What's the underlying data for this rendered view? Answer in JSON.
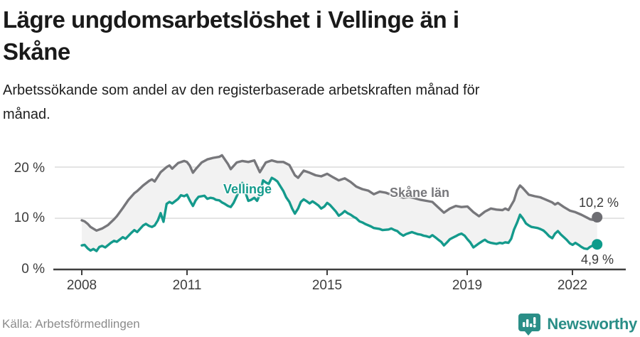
{
  "header": {
    "title_line1": "Lägre ungdomsarbetslöshet i Vellinge än i",
    "title_line2": "Skåne",
    "subtitle_line1": "Arbetssökande som andel av den registerbaserade arbetskraften månad för",
    "subtitle_line2": "månad."
  },
  "chart_data": {
    "type": "line",
    "unit": "%",
    "grid": "horizontal gridlines at 10 and 20, dark baseline at 0",
    "legend_position": "inline labels on lines",
    "band_fill_between_series": true,
    "band_color": "#f2f2f2",
    "grid_color": "#dcdcdc",
    "axis_color": "#3f3f3f",
    "x_axis": {
      "range_years": [
        2008,
        2022.7
      ],
      "ticks": [
        2008,
        2011,
        2015,
        2019,
        2022
      ],
      "tick_labels": [
        "2008",
        "2011",
        "2015",
        "2019",
        "2022"
      ]
    },
    "y_axis": {
      "ticks": [
        0,
        10,
        20
      ],
      "tick_labels": [
        "0 %",
        "10 %",
        "20 %"
      ],
      "ylim": [
        0,
        23
      ]
    },
    "series": [
      {
        "name": "Skåne län",
        "color": "#77777b",
        "dot_color": "#6d6d72",
        "end_value": 10.2,
        "end_value_label": "10,2 %",
        "points": [
          [
            2008.0,
            9.6
          ],
          [
            2008.08,
            9.4
          ],
          [
            2008.17,
            8.9
          ],
          [
            2008.25,
            8.3
          ],
          [
            2008.42,
            7.6
          ],
          [
            2008.58,
            8.0
          ],
          [
            2008.75,
            8.7
          ],
          [
            2008.92,
            9.8
          ],
          [
            2009.0,
            10.4
          ],
          [
            2009.17,
            12.0
          ],
          [
            2009.33,
            13.6
          ],
          [
            2009.5,
            14.9
          ],
          [
            2009.58,
            15.3
          ],
          [
            2009.75,
            16.4
          ],
          [
            2009.92,
            17.3
          ],
          [
            2010.0,
            17.6
          ],
          [
            2010.08,
            17.2
          ],
          [
            2010.25,
            19.0
          ],
          [
            2010.42,
            20.0
          ],
          [
            2010.5,
            20.3
          ],
          [
            2010.58,
            19.7
          ],
          [
            2010.75,
            20.8
          ],
          [
            2010.92,
            21.2
          ],
          [
            2011.0,
            21.0
          ],
          [
            2011.08,
            20.3
          ],
          [
            2011.17,
            18.9
          ],
          [
            2011.25,
            19.6
          ],
          [
            2011.42,
            20.9
          ],
          [
            2011.58,
            21.5
          ],
          [
            2011.75,
            21.8
          ],
          [
            2011.92,
            22.0
          ],
          [
            2012.0,
            22.3
          ],
          [
            2012.17,
            20.6
          ],
          [
            2012.25,
            19.6
          ],
          [
            2012.42,
            20.9
          ],
          [
            2012.58,
            21.2
          ],
          [
            2012.75,
            21.0
          ],
          [
            2012.92,
            21.3
          ],
          [
            2013.08,
            19.0
          ],
          [
            2013.25,
            20.9
          ],
          [
            2013.42,
            21.3
          ],
          [
            2013.58,
            21.0
          ],
          [
            2013.75,
            21.0
          ],
          [
            2013.92,
            20.4
          ],
          [
            2014.08,
            18.4
          ],
          [
            2014.17,
            17.9
          ],
          [
            2014.33,
            19.3
          ],
          [
            2014.5,
            18.9
          ],
          [
            2014.67,
            18.4
          ],
          [
            2014.83,
            18.2
          ],
          [
            2015.0,
            18.7
          ],
          [
            2015.17,
            18.0
          ],
          [
            2015.33,
            17.4
          ],
          [
            2015.5,
            17.8
          ],
          [
            2015.67,
            17.1
          ],
          [
            2015.83,
            16.2
          ],
          [
            2016.0,
            15.7
          ],
          [
            2016.17,
            15.4
          ],
          [
            2016.33,
            14.7
          ],
          [
            2016.5,
            15.2
          ],
          [
            2016.67,
            15.0
          ],
          [
            2016.83,
            14.6
          ],
          [
            2017.0,
            14.4
          ],
          [
            2017.17,
            14.0
          ],
          [
            2017.33,
            14.2
          ],
          [
            2017.5,
            13.9
          ],
          [
            2017.67,
            13.6
          ],
          [
            2017.83,
            13.4
          ],
          [
            2018.0,
            13.2
          ],
          [
            2018.17,
            12.1
          ],
          [
            2018.33,
            11.1
          ],
          [
            2018.5,
            11.9
          ],
          [
            2018.67,
            12.4
          ],
          [
            2018.83,
            12.2
          ],
          [
            2019.0,
            12.3
          ],
          [
            2019.17,
            11.2
          ],
          [
            2019.33,
            10.4
          ],
          [
            2019.5,
            11.3
          ],
          [
            2019.67,
            11.9
          ],
          [
            2019.83,
            11.7
          ],
          [
            2020.0,
            11.6
          ],
          [
            2020.08,
            11.9
          ],
          [
            2020.17,
            11.6
          ],
          [
            2020.33,
            13.5
          ],
          [
            2020.42,
            15.5
          ],
          [
            2020.5,
            16.4
          ],
          [
            2020.58,
            15.9
          ],
          [
            2020.75,
            14.6
          ],
          [
            2020.92,
            14.3
          ],
          [
            2021.08,
            14.1
          ],
          [
            2021.25,
            13.6
          ],
          [
            2021.42,
            13.1
          ],
          [
            2021.5,
            12.7
          ],
          [
            2021.58,
            13.0
          ],
          [
            2021.75,
            12.2
          ],
          [
            2021.92,
            11.5
          ],
          [
            2022.08,
            11.2
          ],
          [
            2022.25,
            10.7
          ],
          [
            2022.42,
            10.1
          ],
          [
            2022.5,
            9.8
          ],
          [
            2022.58,
            9.7
          ],
          [
            2022.7,
            10.2
          ]
        ]
      },
      {
        "name": "Vellinge",
        "color": "#149a8c",
        "dot_color": "#0d9b8b",
        "end_value": 4.9,
        "end_value_label": "4,9 %",
        "points": [
          [
            2008.0,
            4.7
          ],
          [
            2008.08,
            4.8
          ],
          [
            2008.17,
            4.1
          ],
          [
            2008.25,
            3.7
          ],
          [
            2008.33,
            4.0
          ],
          [
            2008.42,
            3.6
          ],
          [
            2008.5,
            4.4
          ],
          [
            2008.58,
            4.6
          ],
          [
            2008.67,
            4.3
          ],
          [
            2008.83,
            5.2
          ],
          [
            2008.92,
            5.6
          ],
          [
            2009.0,
            5.4
          ],
          [
            2009.17,
            6.3
          ],
          [
            2009.25,
            6.0
          ],
          [
            2009.42,
            7.2
          ],
          [
            2009.5,
            7.7
          ],
          [
            2009.58,
            7.3
          ],
          [
            2009.75,
            8.6
          ],
          [
            2009.83,
            8.9
          ],
          [
            2009.92,
            8.5
          ],
          [
            2010.0,
            8.3
          ],
          [
            2010.08,
            8.6
          ],
          [
            2010.17,
            9.6
          ],
          [
            2010.25,
            11.0
          ],
          [
            2010.33,
            9.3
          ],
          [
            2010.42,
            12.8
          ],
          [
            2010.5,
            13.2
          ],
          [
            2010.58,
            12.9
          ],
          [
            2010.75,
            13.8
          ],
          [
            2010.83,
            14.5
          ],
          [
            2010.92,
            14.3
          ],
          [
            2011.0,
            14.6
          ],
          [
            2011.08,
            13.5
          ],
          [
            2011.17,
            12.4
          ],
          [
            2011.25,
            13.5
          ],
          [
            2011.33,
            14.2
          ],
          [
            2011.42,
            14.3
          ],
          [
            2011.5,
            14.4
          ],
          [
            2011.58,
            13.8
          ],
          [
            2011.67,
            14.0
          ],
          [
            2011.75,
            13.9
          ],
          [
            2011.83,
            13.6
          ],
          [
            2011.92,
            13.5
          ],
          [
            2012.0,
            13.1
          ],
          [
            2012.08,
            12.8
          ],
          [
            2012.17,
            12.4
          ],
          [
            2012.25,
            12.2
          ],
          [
            2012.33,
            13.0
          ],
          [
            2012.5,
            15.5
          ],
          [
            2012.58,
            16.9
          ],
          [
            2012.67,
            15.0
          ],
          [
            2012.75,
            13.4
          ],
          [
            2012.83,
            13.6
          ],
          [
            2012.92,
            14.0
          ],
          [
            2013.0,
            13.4
          ],
          [
            2013.08,
            14.6
          ],
          [
            2013.17,
            17.4
          ],
          [
            2013.25,
            17.0
          ],
          [
            2013.33,
            16.7
          ],
          [
            2013.42,
            17.9
          ],
          [
            2013.5,
            17.6
          ],
          [
            2013.58,
            17.2
          ],
          [
            2013.67,
            16.2
          ],
          [
            2013.75,
            15.3
          ],
          [
            2013.83,
            14.1
          ],
          [
            2013.92,
            13.2
          ],
          [
            2014.0,
            11.9
          ],
          [
            2014.08,
            10.9
          ],
          [
            2014.17,
            11.9
          ],
          [
            2014.25,
            13.2
          ],
          [
            2014.33,
            13.7
          ],
          [
            2014.42,
            13.3
          ],
          [
            2014.5,
            12.9
          ],
          [
            2014.58,
            13.3
          ],
          [
            2014.67,
            12.9
          ],
          [
            2014.75,
            12.5
          ],
          [
            2014.83,
            11.9
          ],
          [
            2014.92,
            12.3
          ],
          [
            2015.0,
            13.0
          ],
          [
            2015.08,
            12.6
          ],
          [
            2015.17,
            11.9
          ],
          [
            2015.25,
            11.3
          ],
          [
            2015.33,
            10.5
          ],
          [
            2015.42,
            10.9
          ],
          [
            2015.5,
            11.4
          ],
          [
            2015.58,
            11.0
          ],
          [
            2015.67,
            10.7
          ],
          [
            2015.75,
            10.3
          ],
          [
            2015.83,
            10.0
          ],
          [
            2015.92,
            9.4
          ],
          [
            2016.0,
            9.2
          ],
          [
            2016.08,
            8.9
          ],
          [
            2016.25,
            8.4
          ],
          [
            2016.33,
            8.1
          ],
          [
            2016.5,
            7.9
          ],
          [
            2016.58,
            7.7
          ],
          [
            2016.75,
            7.8
          ],
          [
            2016.83,
            8.0
          ],
          [
            2016.92,
            7.7
          ],
          [
            2017.0,
            7.5
          ],
          [
            2017.08,
            7.0
          ],
          [
            2017.17,
            6.6
          ],
          [
            2017.25,
            6.9
          ],
          [
            2017.33,
            7.1
          ],
          [
            2017.42,
            7.3
          ],
          [
            2017.5,
            7.1
          ],
          [
            2017.58,
            6.9
          ],
          [
            2017.67,
            6.8
          ],
          [
            2017.75,
            6.6
          ],
          [
            2017.83,
            6.5
          ],
          [
            2017.92,
            6.3
          ],
          [
            2018.0,
            6.7
          ],
          [
            2018.08,
            6.3
          ],
          [
            2018.17,
            5.8
          ],
          [
            2018.25,
            5.4
          ],
          [
            2018.33,
            4.7
          ],
          [
            2018.42,
            5.3
          ],
          [
            2018.5,
            5.9
          ],
          [
            2018.58,
            6.2
          ],
          [
            2018.67,
            6.5
          ],
          [
            2018.75,
            6.8
          ],
          [
            2018.83,
            7.0
          ],
          [
            2018.92,
            6.6
          ],
          [
            2019.0,
            5.9
          ],
          [
            2019.08,
            5.3
          ],
          [
            2019.17,
            4.3
          ],
          [
            2019.25,
            4.7
          ],
          [
            2019.33,
            5.1
          ],
          [
            2019.42,
            5.5
          ],
          [
            2019.5,
            5.8
          ],
          [
            2019.58,
            5.4
          ],
          [
            2019.67,
            5.2
          ],
          [
            2019.75,
            5.1
          ],
          [
            2019.83,
            5.0
          ],
          [
            2019.92,
            5.2
          ],
          [
            2020.0,
            5.1
          ],
          [
            2020.08,
            5.3
          ],
          [
            2020.17,
            5.2
          ],
          [
            2020.25,
            6.0
          ],
          [
            2020.33,
            7.8
          ],
          [
            2020.42,
            9.2
          ],
          [
            2020.5,
            10.7
          ],
          [
            2020.58,
            10.0
          ],
          [
            2020.67,
            9.0
          ],
          [
            2020.75,
            8.6
          ],
          [
            2020.83,
            8.3
          ],
          [
            2020.92,
            8.2
          ],
          [
            2021.0,
            8.1
          ],
          [
            2021.08,
            7.9
          ],
          [
            2021.17,
            7.6
          ],
          [
            2021.25,
            7.1
          ],
          [
            2021.33,
            6.5
          ],
          [
            2021.42,
            6.1
          ],
          [
            2021.5,
            7.0
          ],
          [
            2021.58,
            7.5
          ],
          [
            2021.67,
            6.8
          ],
          [
            2021.75,
            6.3
          ],
          [
            2021.83,
            5.8
          ],
          [
            2021.92,
            5.1
          ],
          [
            2022.0,
            4.8
          ],
          [
            2022.08,
            5.2
          ],
          [
            2022.17,
            4.8
          ],
          [
            2022.25,
            4.4
          ],
          [
            2022.33,
            4.1
          ],
          [
            2022.42,
            4.0
          ],
          [
            2022.5,
            4.4
          ],
          [
            2022.58,
            4.7
          ],
          [
            2022.7,
            4.9
          ]
        ]
      }
    ]
  },
  "footer": {
    "source": "Källa: Arbetsförmedlingen",
    "logo_text": "Newsworthy",
    "logo_color": "#2a8e87"
  }
}
